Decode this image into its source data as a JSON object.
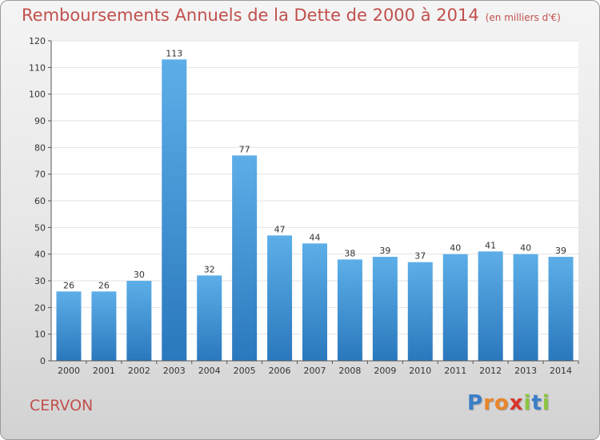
{
  "header": {
    "title": "Remboursements Annuels de la Dette de 2000 à 2014",
    "unit": "(en milliers d'€)"
  },
  "footer": {
    "city": "CERVON",
    "logo_letters": [
      "P",
      "r",
      "o",
      "x",
      "i",
      "t",
      "i"
    ],
    "logo_colors": [
      "#3a7ec9",
      "#e8862a",
      "#e8862a",
      "#d9342b",
      "#8cc63e",
      "#3a7ec9",
      "#8cc63e"
    ]
  },
  "colors": {
    "bar_top": "#5daee8",
    "bar_bottom": "#2a78bd",
    "title": "#c0504d",
    "grid": "#e2e2e2"
  },
  "chart_data": {
    "type": "bar",
    "title": "Remboursements Annuels de la Dette de 2000 à 2014",
    "xlabel": "",
    "ylabel": "",
    "categories": [
      "2000",
      "2001",
      "2002",
      "2003",
      "2004",
      "2005",
      "2006",
      "2007",
      "2008",
      "2009",
      "2010",
      "2011",
      "2012",
      "2013",
      "2014"
    ],
    "values": [
      26,
      26,
      30,
      113,
      32,
      77,
      47,
      44,
      38,
      39,
      37,
      40,
      41,
      40,
      39
    ],
    "ylim": [
      0,
      120
    ],
    "yticks": [
      0,
      10,
      20,
      30,
      40,
      50,
      60,
      70,
      80,
      90,
      100,
      110,
      120
    ],
    "grid": true
  }
}
